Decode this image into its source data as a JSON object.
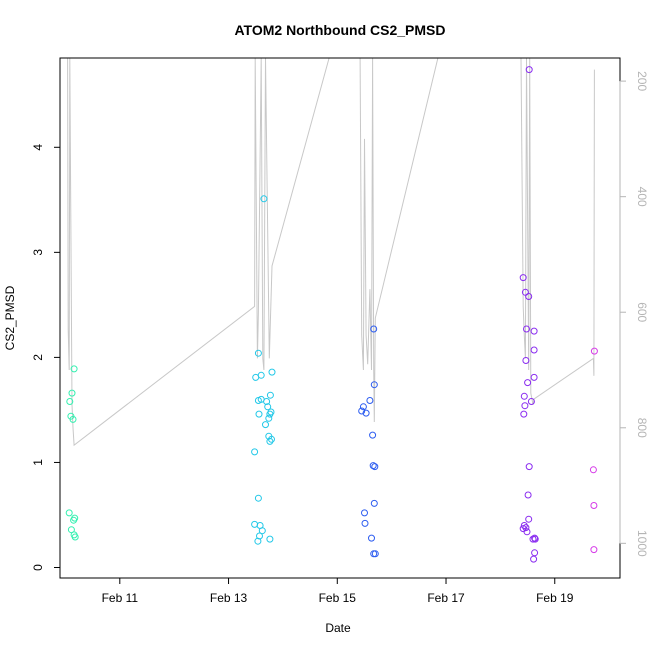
{
  "chart_data": {
    "type": "scatter",
    "title": "ATOM2 Northbound CS2_PMSD",
    "xlabel": "Date",
    "ylabel": "CS2_PMSD",
    "x_unit": "days (Feb day-of-month)",
    "xlim": [
      9.9,
      20.2
    ],
    "ylim": [
      -0.1,
      4.85
    ],
    "x_ticks": [
      11,
      13,
      15,
      17,
      19
    ],
    "x_tick_labels": [
      "Feb 11",
      "Feb 13",
      "Feb 15",
      "Feb 17",
      "Feb 19"
    ],
    "y_ticks": [
      0,
      1,
      2,
      3,
      4
    ],
    "y_tick_labels": [
      "0",
      "1",
      "2",
      "3",
      "4"
    ],
    "y2_lim": [
      1060,
      160
    ],
    "y2_ticks": [
      200,
      400,
      600,
      800,
      1000
    ],
    "y2_tick_labels": [
      "200",
      "400",
      "600",
      "800",
      "1000"
    ],
    "points": [
      {
        "x": 10.07,
        "y": 0.52,
        "color": "#33f0b0"
      },
      {
        "x": 10.11,
        "y": 0.36,
        "color": "#33f0b0"
      },
      {
        "x": 10.15,
        "y": 0.45,
        "color": "#33f0b0"
      },
      {
        "x": 10.17,
        "y": 0.47,
        "color": "#33f0b0"
      },
      {
        "x": 10.16,
        "y": 0.31,
        "color": "#33f0b0"
      },
      {
        "x": 10.18,
        "y": 0.29,
        "color": "#33f0b0"
      },
      {
        "x": 10.08,
        "y": 1.58,
        "color": "#33f0b0"
      },
      {
        "x": 10.12,
        "y": 1.66,
        "color": "#33f0b0"
      },
      {
        "x": 10.1,
        "y": 1.44,
        "color": "#33f0b0"
      },
      {
        "x": 10.14,
        "y": 1.41,
        "color": "#33f0b0"
      },
      {
        "x": 10.16,
        "y": 1.89,
        "color": "#33f0b0"
      },
      {
        "x": 13.48,
        "y": 1.1,
        "color": "#22c8e8"
      },
      {
        "x": 13.5,
        "y": 1.81,
        "color": "#22c8e8"
      },
      {
        "x": 13.55,
        "y": 2.04,
        "color": "#22c8e8"
      },
      {
        "x": 13.6,
        "y": 1.83,
        "color": "#22c8e8"
      },
      {
        "x": 13.55,
        "y": 1.59,
        "color": "#22c8e8"
      },
      {
        "x": 13.6,
        "y": 1.6,
        "color": "#22c8e8"
      },
      {
        "x": 13.56,
        "y": 1.46,
        "color": "#22c8e8"
      },
      {
        "x": 13.65,
        "y": 3.51,
        "color": "#22c8e8"
      },
      {
        "x": 13.7,
        "y": 1.58,
        "color": "#22c8e8"
      },
      {
        "x": 13.72,
        "y": 1.53,
        "color": "#22c8e8"
      },
      {
        "x": 13.68,
        "y": 1.36,
        "color": "#22c8e8"
      },
      {
        "x": 13.74,
        "y": 1.42,
        "color": "#22c8e8"
      },
      {
        "x": 13.76,
        "y": 1.46,
        "color": "#22c8e8"
      },
      {
        "x": 13.78,
        "y": 1.48,
        "color": "#22c8e8"
      },
      {
        "x": 13.8,
        "y": 1.86,
        "color": "#22c8e8"
      },
      {
        "x": 13.77,
        "y": 1.64,
        "color": "#22c8e8"
      },
      {
        "x": 13.74,
        "y": 1.25,
        "color": "#22c8e8"
      },
      {
        "x": 13.76,
        "y": 1.2,
        "color": "#22c8e8"
      },
      {
        "x": 13.79,
        "y": 1.22,
        "color": "#22c8e8"
      },
      {
        "x": 13.55,
        "y": 0.66,
        "color": "#22c8e8"
      },
      {
        "x": 13.48,
        "y": 0.41,
        "color": "#22c8e8"
      },
      {
        "x": 13.58,
        "y": 0.4,
        "color": "#22c8e8"
      },
      {
        "x": 13.62,
        "y": 0.35,
        "color": "#22c8e8"
      },
      {
        "x": 13.57,
        "y": 0.3,
        "color": "#22c8e8"
      },
      {
        "x": 13.54,
        "y": 0.25,
        "color": "#22c8e8"
      },
      {
        "x": 13.76,
        "y": 0.27,
        "color": "#22c8e8"
      },
      {
        "x": 15.45,
        "y": 1.49,
        "color": "#2c5cf0"
      },
      {
        "x": 15.48,
        "y": 1.53,
        "color": "#2c5cf0"
      },
      {
        "x": 15.53,
        "y": 1.47,
        "color": "#2c5cf0"
      },
      {
        "x": 15.6,
        "y": 1.59,
        "color": "#2c5cf0"
      },
      {
        "x": 15.67,
        "y": 2.27,
        "color": "#2c5cf0"
      },
      {
        "x": 15.68,
        "y": 1.74,
        "color": "#2c5cf0"
      },
      {
        "x": 15.65,
        "y": 1.26,
        "color": "#2c5cf0"
      },
      {
        "x": 15.66,
        "y": 0.97,
        "color": "#2c5cf0"
      },
      {
        "x": 15.69,
        "y": 0.96,
        "color": "#2c5cf0"
      },
      {
        "x": 15.68,
        "y": 0.61,
        "color": "#2c5cf0"
      },
      {
        "x": 15.5,
        "y": 0.52,
        "color": "#2c5cf0"
      },
      {
        "x": 15.51,
        "y": 0.42,
        "color": "#2c5cf0"
      },
      {
        "x": 15.63,
        "y": 0.28,
        "color": "#2c5cf0"
      },
      {
        "x": 15.67,
        "y": 0.13,
        "color": "#2c5cf0"
      },
      {
        "x": 15.7,
        "y": 0.13,
        "color": "#2c5cf0"
      },
      {
        "x": 18.42,
        "y": 2.76,
        "color": "#8a2cf0"
      },
      {
        "x": 18.46,
        "y": 2.62,
        "color": "#8a2cf0"
      },
      {
        "x": 18.52,
        "y": 2.58,
        "color": "#8a2cf0"
      },
      {
        "x": 18.48,
        "y": 2.27,
        "color": "#8a2cf0"
      },
      {
        "x": 18.62,
        "y": 2.25,
        "color": "#8a2cf0"
      },
      {
        "x": 18.62,
        "y": 2.07,
        "color": "#8a2cf0"
      },
      {
        "x": 18.47,
        "y": 1.97,
        "color": "#8a2cf0"
      },
      {
        "x": 18.5,
        "y": 1.76,
        "color": "#8a2cf0"
      },
      {
        "x": 18.62,
        "y": 1.81,
        "color": "#8a2cf0"
      },
      {
        "x": 18.44,
        "y": 1.63,
        "color": "#8a2cf0"
      },
      {
        "x": 18.57,
        "y": 1.58,
        "color": "#8a2cf0"
      },
      {
        "x": 18.45,
        "y": 1.54,
        "color": "#8a2cf0"
      },
      {
        "x": 18.43,
        "y": 1.46,
        "color": "#8a2cf0"
      },
      {
        "x": 18.53,
        "y": 4.74,
        "color": "#8a2cf0"
      },
      {
        "x": 18.53,
        "y": 0.96,
        "color": "#8a2cf0"
      },
      {
        "x": 18.51,
        "y": 0.69,
        "color": "#8a2cf0"
      },
      {
        "x": 18.52,
        "y": 0.46,
        "color": "#8a2cf0"
      },
      {
        "x": 18.44,
        "y": 0.4,
        "color": "#8a2cf0"
      },
      {
        "x": 18.42,
        "y": 0.37,
        "color": "#8a2cf0"
      },
      {
        "x": 18.47,
        "y": 0.38,
        "color": "#8a2cf0"
      },
      {
        "x": 18.49,
        "y": 0.34,
        "color": "#8a2cf0"
      },
      {
        "x": 18.6,
        "y": 0.27,
        "color": "#8a2cf0"
      },
      {
        "x": 18.63,
        "y": 0.28,
        "color": "#8a2cf0"
      },
      {
        "x": 18.64,
        "y": 0.27,
        "color": "#8a2cf0"
      },
      {
        "x": 18.63,
        "y": 0.14,
        "color": "#8a2cf0"
      },
      {
        "x": 18.61,
        "y": 0.08,
        "color": "#8a2cf0"
      },
      {
        "x": 19.73,
        "y": 2.06,
        "color": "#d63ae8"
      },
      {
        "x": 19.71,
        "y": 0.93,
        "color": "#d63ae8"
      },
      {
        "x": 19.72,
        "y": 0.59,
        "color": "#d63ae8"
      },
      {
        "x": 19.72,
        "y": 0.17,
        "color": "#d63ae8"
      }
    ],
    "secondary_line": {
      "name": "right-axis series",
      "color": "#c8c8c8",
      "points": [
        [
          10.04,
          160
        ],
        [
          10.05,
          630
        ],
        [
          10.07,
          700
        ],
        [
          10.08,
          160
        ],
        [
          10.12,
          760
        ],
        [
          10.14,
          800
        ],
        [
          10.16,
          830
        ],
        [
          13.48,
          590
        ],
        [
          13.49,
          160
        ],
        [
          13.53,
          680
        ],
        [
          13.55,
          600
        ],
        [
          13.6,
          160
        ],
        [
          13.63,
          680
        ],
        [
          13.65,
          700
        ],
        [
          13.68,
          160
        ],
        [
          13.75,
          680
        ],
        [
          13.8,
          520
        ],
        [
          14.85,
          160
        ],
        [
          15.42,
          160
        ],
        [
          15.45,
          640
        ],
        [
          15.48,
          700
        ],
        [
          15.5,
          300
        ],
        [
          15.53,
          640
        ],
        [
          15.56,
          690
        ],
        [
          15.6,
          560
        ],
        [
          15.63,
          700
        ],
        [
          15.65,
          160
        ],
        [
          15.67,
          700
        ],
        [
          15.68,
          790
        ],
        [
          15.7,
          610
        ],
        [
          16.85,
          160
        ],
        [
          18.38,
          160
        ],
        [
          18.42,
          590
        ],
        [
          18.44,
          640
        ],
        [
          18.46,
          680
        ],
        [
          18.48,
          160
        ],
        [
          18.52,
          700
        ],
        [
          18.54,
          160
        ],
        [
          18.56,
          740
        ],
        [
          18.6,
          760
        ],
        [
          18.62,
          750
        ],
        [
          19.71,
          680
        ],
        [
          19.72,
          710
        ],
        [
          19.73,
          180
        ]
      ]
    }
  }
}
